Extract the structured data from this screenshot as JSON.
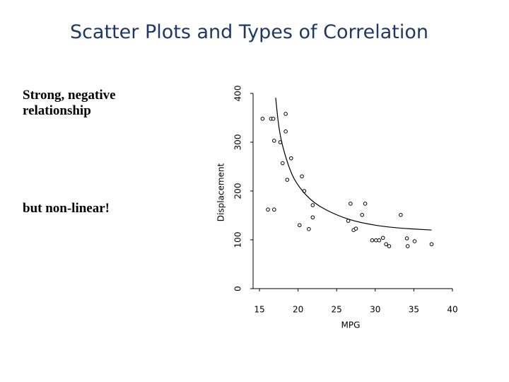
{
  "title": "Scatter Plots and Types of Correlation",
  "notes": [
    "Strong, negative relationship",
    "but non-linear!"
  ],
  "chart_data": {
    "type": "scatter",
    "xlabel": "MPG",
    "ylabel": "Displacement",
    "xlim": [
      15,
      40
    ],
    "ylim": [
      0,
      400
    ],
    "xticks": [
      15,
      20,
      25,
      30,
      35,
      40
    ],
    "yticks": [
      0,
      100,
      200,
      300,
      400
    ],
    "color": "#000000",
    "x": [
      15.4,
      16.5,
      16.8,
      18.4,
      18.4,
      16.9,
      17.7,
      19.1,
      18.0,
      20.5,
      18.6,
      20.8,
      16.1,
      16.9,
      21.9,
      26.8,
      28.7,
      20.2,
      21.4,
      21.9,
      28.3,
      33.3,
      26.5,
      27.2,
      27.5,
      29.6,
      30.1,
      30.5,
      31.0,
      31.4,
      31.8,
      34.1,
      34.2,
      35.1,
      37.3
    ],
    "y": [
      348,
      348,
      348,
      358,
      322,
      303,
      300,
      267,
      257,
      230,
      223,
      200,
      162,
      162,
      171,
      174,
      174,
      130,
      122,
      146,
      151,
      151,
      139,
      120,
      123,
      99,
      99,
      99,
      104,
      91,
      87,
      103,
      87,
      97,
      91
    ],
    "curve": {
      "x": [
        17.1,
        17.5,
        18,
        19,
        20,
        22,
        25,
        28,
        32,
        37.3
      ],
      "y": [
        391,
        330,
        290,
        240,
        210,
        175,
        150,
        135,
        125,
        120
      ]
    }
  }
}
